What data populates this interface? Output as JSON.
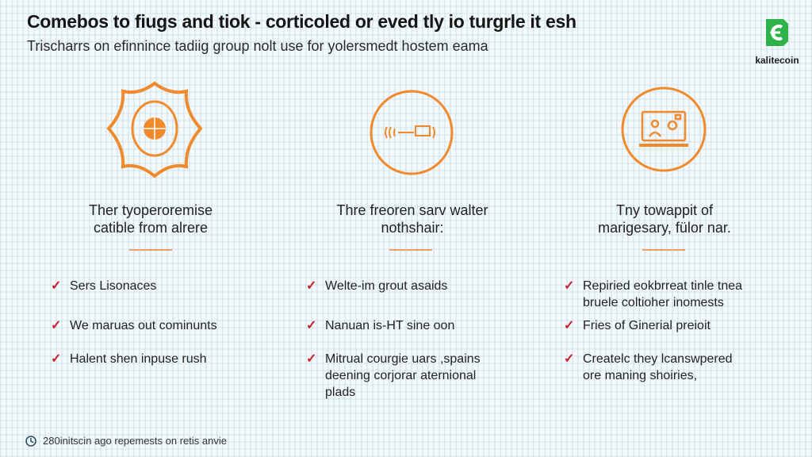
{
  "header": {
    "title": "Comebos to fiugs and tiok - corticoled or eved tly io turgrle it esh",
    "subtitle": "Trischarrs on efinnince tadiig group nolt use for yolersmedt hostem eama"
  },
  "logo": {
    "text": "kalitecoin",
    "color": "#2fb24a"
  },
  "accent_color": "#f08a2c",
  "check_color": "#c8202a",
  "columns": [
    {
      "icon": "ornate-globe-icon",
      "heading": [
        "Ther tyoperoremise",
        "catible from alrere"
      ],
      "bullets": [
        [
          "Sers Lisonaces"
        ],
        [
          "We maruas out cominunts"
        ],
        [
          "Halent shen inpuse rush"
        ]
      ]
    },
    {
      "icon": "signal-device-icon",
      "heading": [
        "Thre freoren sarv walter",
        "nothshair:"
      ],
      "bullets": [
        [
          "Welte-im grout asaids"
        ],
        [
          "Nanuan is-HT sine oon"
        ],
        [
          "Mitrual courgie uars ,spains",
          "deening corjorar aternional",
          "plads"
        ]
      ]
    },
    {
      "icon": "laptop-user-icon",
      "heading": [
        "Tny towappit of",
        "marigesary, fülor nar."
      ],
      "bullets": [
        [
          "Repiried eokbrreat tinle tnea",
          "bruele coltioher inomests"
        ],
        [
          "Fries of Ginerial preioit"
        ],
        [
          "Createlc they lcanswpered",
          "ore maning shoiries,"
        ]
      ]
    }
  ],
  "footer": {
    "icon": "clock-icon",
    "text": "280initscin ago repemests on retis anvie"
  }
}
